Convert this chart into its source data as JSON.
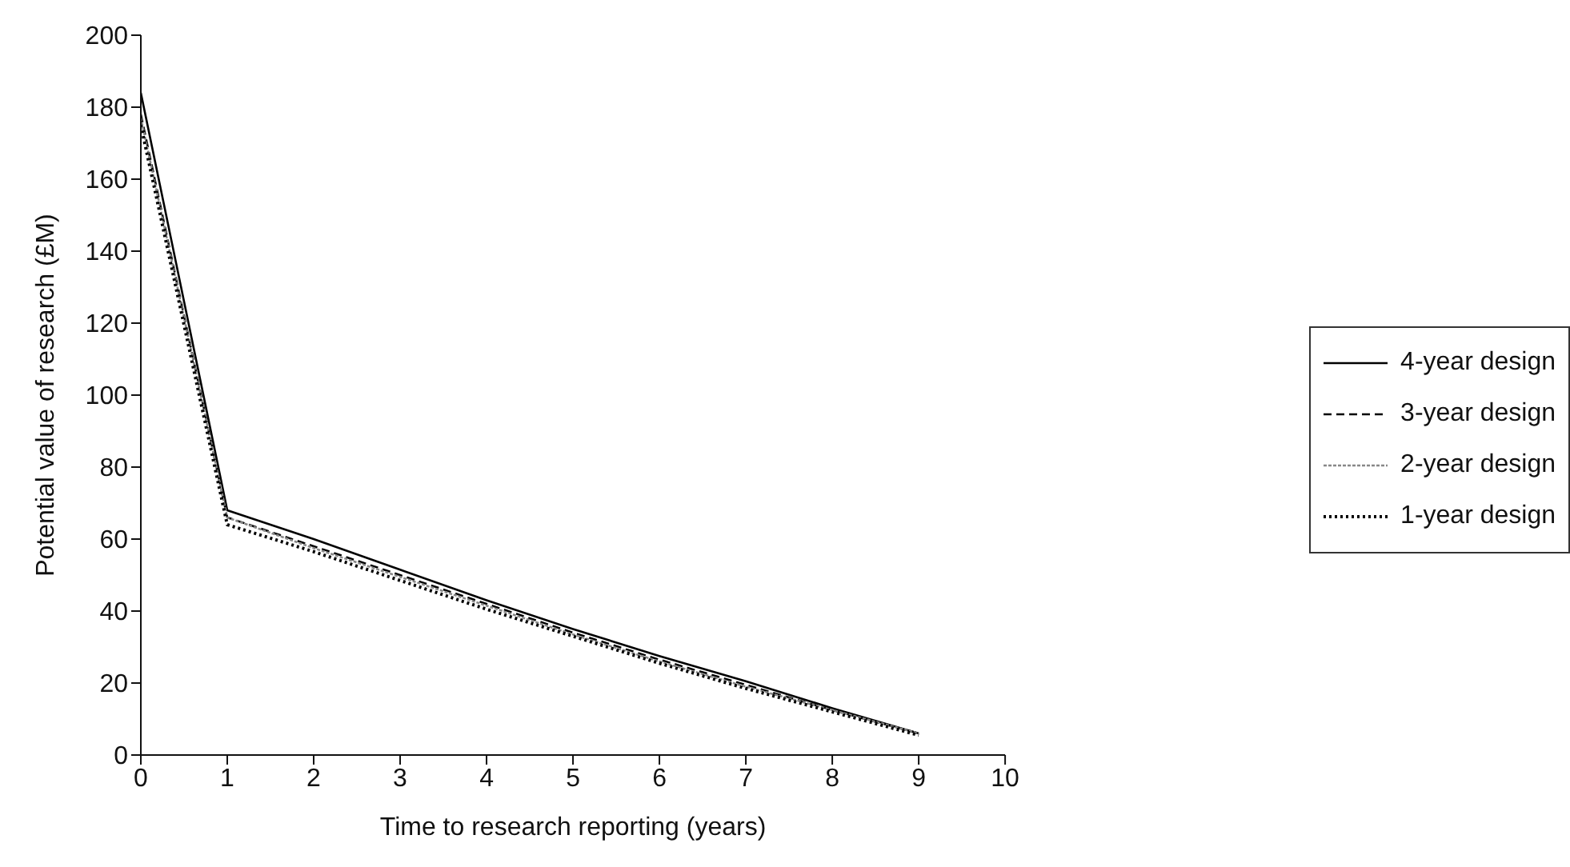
{
  "chart_data": {
    "type": "line",
    "xlabel": "Time to research reporting (years)",
    "ylabel": "Potential value of research (£M)",
    "x": [
      0,
      1,
      2,
      3,
      4,
      5,
      6,
      7,
      8,
      9
    ],
    "xlim": [
      0,
      10
    ],
    "xticks": [
      0,
      1,
      2,
      3,
      4,
      5,
      6,
      7,
      8,
      9,
      10
    ],
    "ylim": [
      0,
      200
    ],
    "yticks": [
      0,
      20,
      40,
      60,
      80,
      100,
      120,
      140,
      160,
      180,
      200
    ],
    "grid": false,
    "legend": "right",
    "marker": "none",
    "series": [
      {
        "name": "4-year design",
        "color": "#000000",
        "line_style": "solid",
        "values": [
          184,
          68,
          60,
          51.5,
          43,
          35,
          27.5,
          20.5,
          13,
          6
        ]
      },
      {
        "name": "3-year design",
        "color": "#000000",
        "line_style": "dashed",
        "values": [
          178,
          66,
          58,
          50,
          42,
          34,
          26.5,
          19.5,
          12.5,
          6
        ]
      },
      {
        "name": "2-year design",
        "color": "#888888",
        "line_style": "dashed",
        "values": [
          177,
          66,
          57.5,
          49.5,
          41.5,
          33.5,
          26,
          19,
          12.5,
          6
        ]
      },
      {
        "name": "1-year design",
        "color": "#000000",
        "line_style": "dotted",
        "values": [
          175,
          64,
          56.5,
          48.5,
          40.5,
          33,
          25.5,
          18.5,
          12,
          5.5
        ]
      }
    ]
  }
}
